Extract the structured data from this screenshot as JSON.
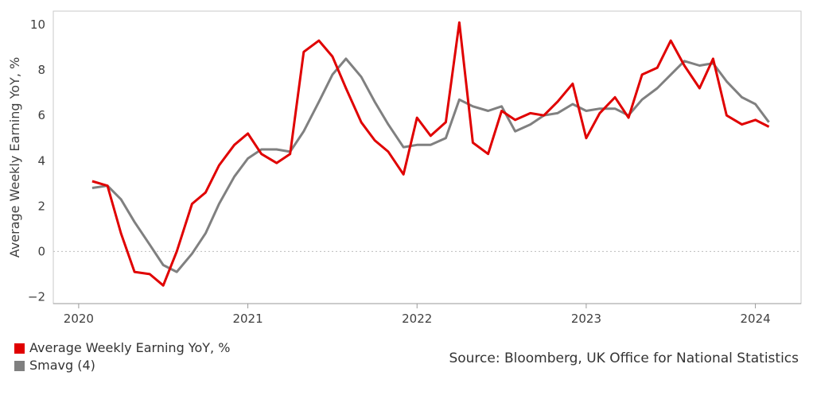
{
  "chart_data": {
    "type": "line",
    "title": "",
    "xlabel": "",
    "ylabel": "Average Weekly Earning YoY, %",
    "ylim": [
      -2.3,
      10.6
    ],
    "yticks": [
      -2,
      0,
      2,
      4,
      6,
      8,
      10
    ],
    "xlim": [
      2019.85,
      2024.27
    ],
    "xticks": [
      2020,
      2021,
      2022,
      2023,
      2024
    ],
    "x_tick_labels": [
      "2020",
      "2021",
      "2022",
      "2023",
      "2024"
    ],
    "grid": "horizontal dotted at zero only",
    "legend_position": "bottom-left",
    "series": [
      {
        "name": "Average Weekly Earning YoY, %",
        "color": "#e00000",
        "x": [
          2020.08,
          2020.17,
          2020.25,
          2020.33,
          2020.42,
          2020.5,
          2020.58,
          2020.67,
          2020.75,
          2020.83,
          2020.92,
          2021.0,
          2021.08,
          2021.17,
          2021.25,
          2021.33,
          2021.42,
          2021.5,
          2021.58,
          2021.67,
          2021.75,
          2021.83,
          2021.92,
          2022.0,
          2022.08,
          2022.17,
          2022.25,
          2022.33,
          2022.42,
          2022.5,
          2022.58,
          2022.67,
          2022.75,
          2022.83,
          2022.92,
          2023.0,
          2023.08,
          2023.17,
          2023.25,
          2023.33,
          2023.42,
          2023.5,
          2023.58,
          2023.67,
          2023.75,
          2023.83,
          2023.92,
          2024.0,
          2024.08
        ],
        "y": [
          3.1,
          2.9,
          0.8,
          -0.9,
          -1.0,
          -1.5,
          0.0,
          2.1,
          2.6,
          3.8,
          4.7,
          5.2,
          4.3,
          3.9,
          4.3,
          8.8,
          9.3,
          8.6,
          7.2,
          5.7,
          4.9,
          4.4,
          3.4,
          5.9,
          5.1,
          5.7,
          10.1,
          4.8,
          4.3,
          6.2,
          5.8,
          6.1,
          6.0,
          6.6,
          7.4,
          5.0,
          6.1,
          6.8,
          5.9,
          7.8,
          8.1,
          9.3,
          8.2,
          7.2,
          8.5,
          6.0,
          5.6,
          5.8,
          5.5
        ]
      },
      {
        "name": "Smavg (4)",
        "color": "#808080",
        "x": [
          2020.08,
          2020.17,
          2020.25,
          2020.33,
          2020.42,
          2020.5,
          2020.58,
          2020.67,
          2020.75,
          2020.83,
          2020.92,
          2021.0,
          2021.08,
          2021.17,
          2021.25,
          2021.33,
          2021.42,
          2021.5,
          2021.58,
          2021.67,
          2021.75,
          2021.83,
          2021.92,
          2022.0,
          2022.08,
          2022.17,
          2022.25,
          2022.33,
          2022.42,
          2022.5,
          2022.58,
          2022.67,
          2022.75,
          2022.83,
          2022.92,
          2023.0,
          2023.08,
          2023.17,
          2023.25,
          2023.33,
          2023.42,
          2023.5,
          2023.58,
          2023.67,
          2023.75,
          2023.83,
          2023.92,
          2024.0,
          2024.08
        ],
        "y": [
          2.8,
          2.9,
          2.3,
          1.3,
          0.3,
          -0.6,
          -0.9,
          -0.1,
          0.8,
          2.1,
          3.3,
          4.1,
          4.5,
          4.5,
          4.4,
          5.3,
          6.6,
          7.8,
          8.5,
          7.7,
          6.6,
          5.6,
          4.6,
          4.7,
          4.7,
          5.0,
          6.7,
          6.4,
          6.2,
          6.4,
          5.3,
          5.6,
          6.0,
          6.1,
          6.5,
          6.2,
          6.3,
          6.3,
          6.0,
          6.7,
          7.2,
          7.8,
          8.4,
          8.2,
          8.3,
          7.5,
          6.8,
          6.5,
          5.7
        ]
      }
    ]
  },
  "legend": {
    "items": [
      {
        "label": "Average Weekly Earning YoY, %",
        "color": "#e00000"
      },
      {
        "label": "Smavg (4)",
        "color": "#808080"
      }
    ]
  },
  "source_text": "Source: Bloomberg, UK Office for National Statistics"
}
